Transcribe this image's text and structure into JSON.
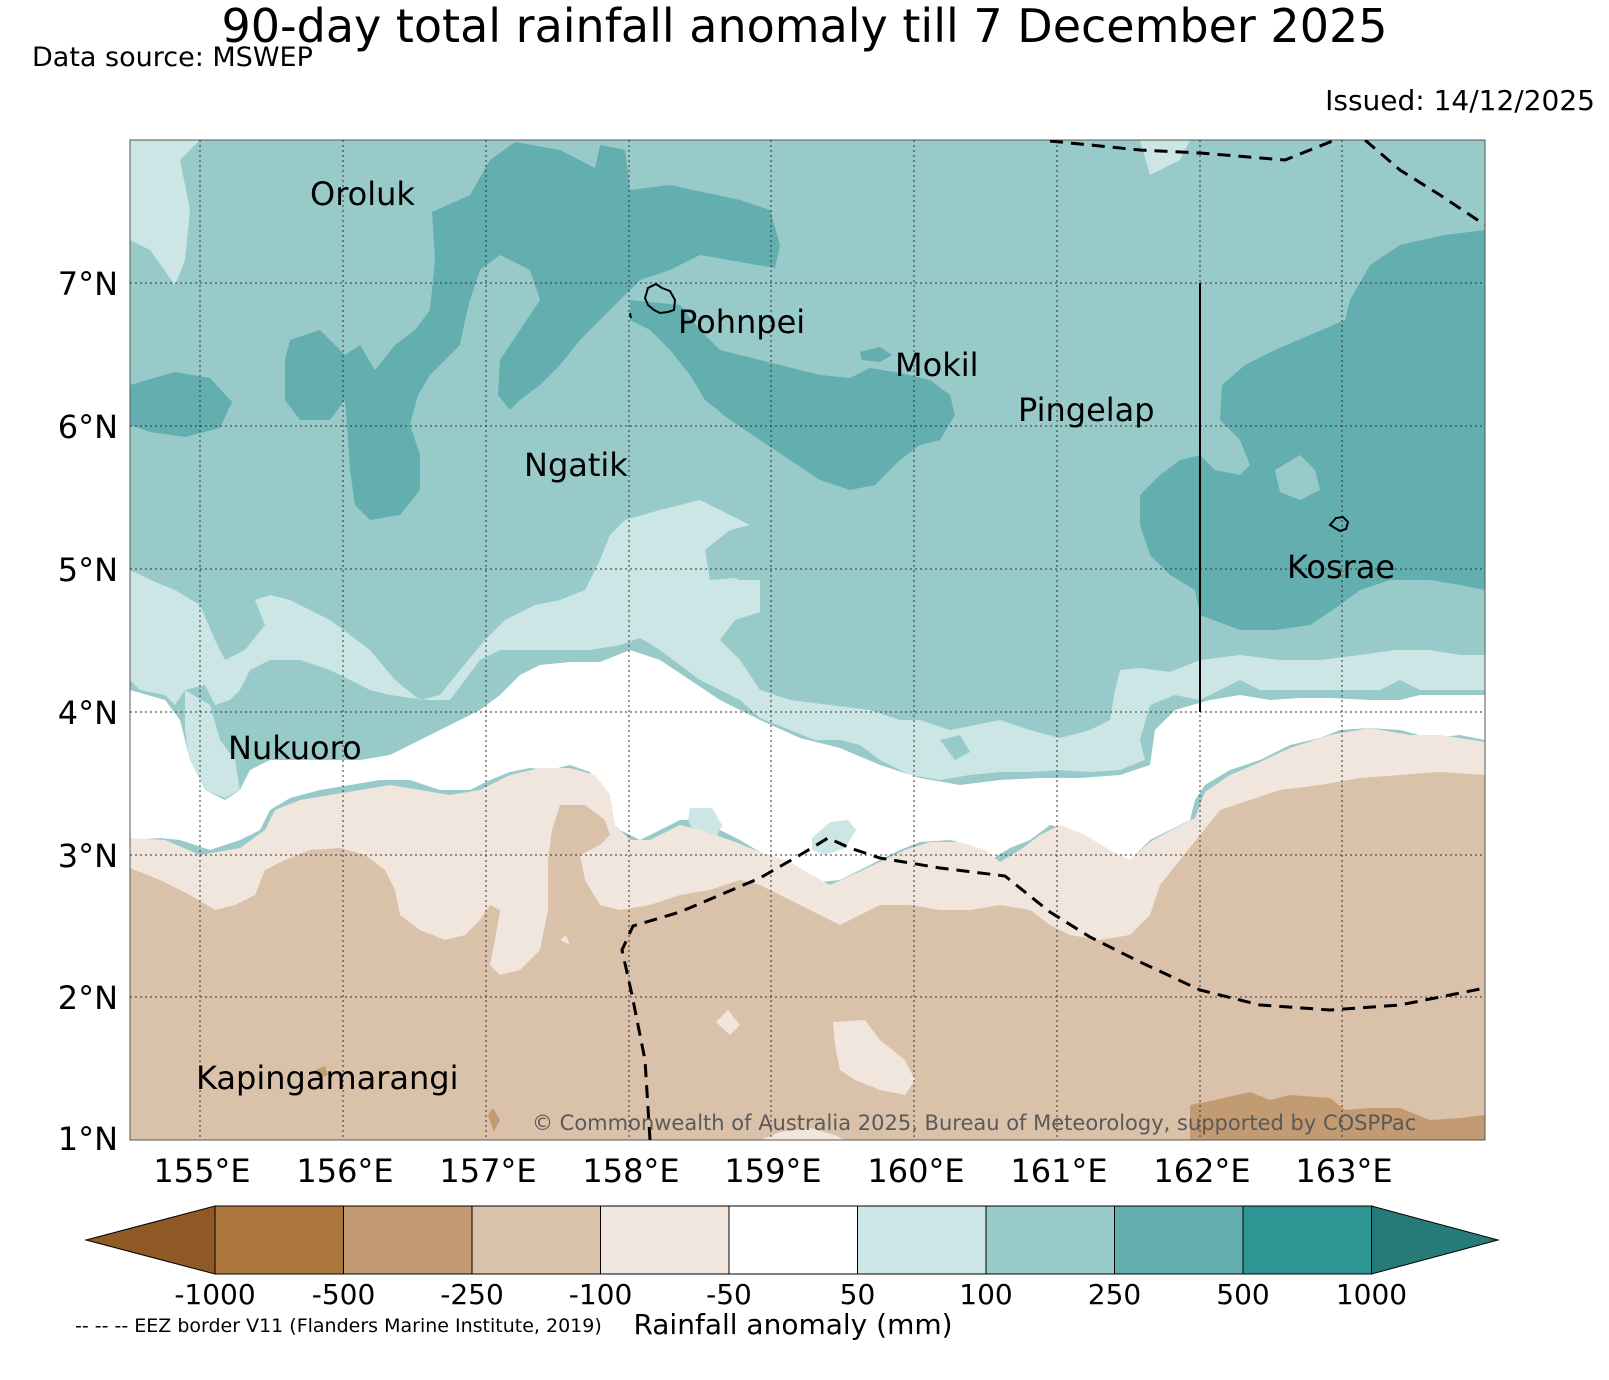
{
  "title": "90-day total rainfall anomaly till 7 December 2025",
  "data_source": "Data source: MSWEP",
  "issued": "Issued: 14/12/2025",
  "lat_labels": [
    "7°N",
    "6°N",
    "5°N",
    "4°N",
    "3°N",
    "2°N",
    "1°N"
  ],
  "lon_labels": [
    "155°E",
    "156°E",
    "157°E",
    "158°E",
    "159°E",
    "160°E",
    "161°E",
    "162°E",
    "163°E"
  ],
  "places": [
    "Oroluk",
    "Pohnpei",
    "Mokil",
    "Pingelap",
    "Ngatik",
    "Kosrae",
    "Nukuoro",
    "Kapingamarangi"
  ],
  "copyright": "© Commonwealth of Australia 2025, Bureau of Meteorology, supported by COSPPac",
  "colorbar": {
    "ticks": [
      "-1000",
      "-500",
      "-250",
      "-100",
      "-50",
      "50",
      "100",
      "250",
      "500",
      "1000"
    ],
    "colors": [
      "#905a26",
      "#ab763e",
      "#c39b72",
      "#dac1a9",
      "#f0e6dd",
      "#ffffff",
      "#cce5e5",
      "#99caca",
      "#63aeaf",
      "#2e9796",
      "#267a78"
    ],
    "label": "Rainfall anomaly (mm)"
  },
  "eez_note": "-- -- -- EEZ border V11 (Flanders Marine Institute, 2019)"
}
